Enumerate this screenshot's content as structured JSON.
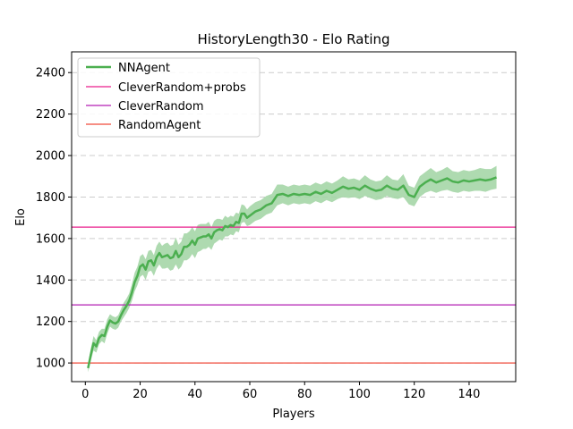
{
  "chart_data": {
    "type": "line",
    "title": "HistoryLength30 - Elo Rating",
    "xlabel": "Players",
    "ylabel": "Elo",
    "xlim": [
      -5,
      157
    ],
    "ylim": [
      910,
      2500
    ],
    "xticks": [
      0,
      20,
      40,
      60,
      80,
      100,
      120,
      140
    ],
    "yticks": [
      1000,
      1200,
      1400,
      1600,
      1800,
      2000,
      2200,
      2400
    ],
    "grid": "y-dashed",
    "legend_position": "top-left",
    "series": [
      {
        "name": "NNAgent",
        "kind": "line-with-band",
        "color": "#4caf50",
        "band_color": "#a5d6a7",
        "x": [
          1,
          2,
          3,
          4,
          5,
          6,
          7,
          8,
          9,
          10,
          11,
          12,
          13,
          14,
          15,
          16,
          17,
          18,
          19,
          20,
          21,
          22,
          23,
          24,
          25,
          26,
          27,
          28,
          29,
          30,
          31,
          32,
          33,
          34,
          35,
          36,
          37,
          38,
          39,
          40,
          41,
          42,
          43,
          44,
          45,
          46,
          47,
          48,
          49,
          50,
          51,
          52,
          53,
          54,
          55,
          56,
          57,
          58,
          59,
          60,
          62,
          64,
          66,
          68,
          70,
          72,
          74,
          76,
          78,
          80,
          82,
          84,
          86,
          88,
          90,
          92,
          94,
          96,
          98,
          100,
          102,
          104,
          106,
          108,
          110,
          112,
          114,
          116,
          118,
          120,
          122,
          124,
          126,
          128,
          130,
          132,
          134,
          136,
          138,
          140,
          142,
          144,
          146,
          148,
          150
        ],
        "values": [
          975,
          1040,
          1095,
          1080,
          1120,
          1135,
          1130,
          1175,
          1205,
          1195,
          1190,
          1200,
          1230,
          1255,
          1275,
          1300,
          1340,
          1390,
          1420,
          1465,
          1475,
          1450,
          1490,
          1495,
          1470,
          1510,
          1530,
          1510,
          1515,
          1520,
          1505,
          1510,
          1540,
          1510,
          1525,
          1560,
          1560,
          1570,
          1590,
          1570,
          1600,
          1605,
          1610,
          1610,
          1620,
          1600,
          1630,
          1640,
          1645,
          1640,
          1660,
          1655,
          1665,
          1660,
          1680,
          1675,
          1720,
          1720,
          1700,
          1710,
          1730,
          1740,
          1760,
          1770,
          1810,
          1815,
          1805,
          1815,
          1810,
          1815,
          1810,
          1825,
          1815,
          1830,
          1820,
          1835,
          1850,
          1840,
          1845,
          1835,
          1855,
          1840,
          1830,
          1835,
          1855,
          1840,
          1835,
          1855,
          1810,
          1800,
          1850,
          1870,
          1885,
          1870,
          1880,
          1890,
          1875,
          1870,
          1880,
          1875,
          1880,
          1885,
          1880,
          1885,
          1895
        ],
        "lower": [
          955,
          1010,
          1060,
          1050,
          1090,
          1105,
          1095,
          1140,
          1175,
          1165,
          1160,
          1170,
          1200,
          1220,
          1240,
          1265,
          1300,
          1345,
          1375,
          1415,
          1425,
          1400,
          1440,
          1445,
          1420,
          1455,
          1475,
          1455,
          1455,
          1460,
          1445,
          1450,
          1475,
          1450,
          1465,
          1495,
          1495,
          1505,
          1525,
          1505,
          1535,
          1540,
          1550,
          1550,
          1560,
          1545,
          1575,
          1585,
          1595,
          1590,
          1610,
          1610,
          1620,
          1615,
          1635,
          1630,
          1675,
          1680,
          1660,
          1665,
          1685,
          1695,
          1715,
          1725,
          1760,
          1770,
          1760,
          1770,
          1765,
          1770,
          1765,
          1780,
          1770,
          1785,
          1775,
          1790,
          1800,
          1795,
          1800,
          1790,
          1805,
          1795,
          1785,
          1790,
          1805,
          1795,
          1790,
          1800,
          1765,
          1755,
          1800,
          1820,
          1830,
          1820,
          1830,
          1835,
          1825,
          1820,
          1830,
          1825,
          1830,
          1830,
          1825,
          1835,
          1840
        ],
        "upper": [
          995,
          1070,
          1130,
          1110,
          1150,
          1165,
          1165,
          1210,
          1235,
          1225,
          1220,
          1230,
          1260,
          1290,
          1310,
          1335,
          1380,
          1435,
          1465,
          1515,
          1525,
          1500,
          1540,
          1545,
          1520,
          1565,
          1585,
          1565,
          1575,
          1580,
          1565,
          1570,
          1605,
          1570,
          1585,
          1625,
          1625,
          1635,
          1655,
          1635,
          1665,
          1670,
          1670,
          1670,
          1680,
          1655,
          1685,
          1695,
          1695,
          1690,
          1710,
          1700,
          1710,
          1705,
          1725,
          1720,
          1765,
          1760,
          1740,
          1755,
          1775,
          1785,
          1805,
          1815,
          1860,
          1860,
          1850,
          1860,
          1855,
          1860,
          1855,
          1870,
          1860,
          1875,
          1865,
          1880,
          1900,
          1885,
          1890,
          1880,
          1905,
          1885,
          1875,
          1880,
          1905,
          1885,
          1880,
          1910,
          1855,
          1845,
          1900,
          1920,
          1940,
          1920,
          1930,
          1945,
          1925,
          1920,
          1930,
          1925,
          1930,
          1940,
          1935,
          1935,
          1950
        ]
      },
      {
        "name": "CleverRandom+probs",
        "kind": "hline",
        "color": "#e91e8c",
        "value": 1655
      },
      {
        "name": "CleverRandom",
        "kind": "hline",
        "color": "#b31fb3",
        "value": 1280
      },
      {
        "name": "RandomAgent",
        "kind": "hline",
        "color": "#f04a3a",
        "value": 1000
      }
    ]
  }
}
